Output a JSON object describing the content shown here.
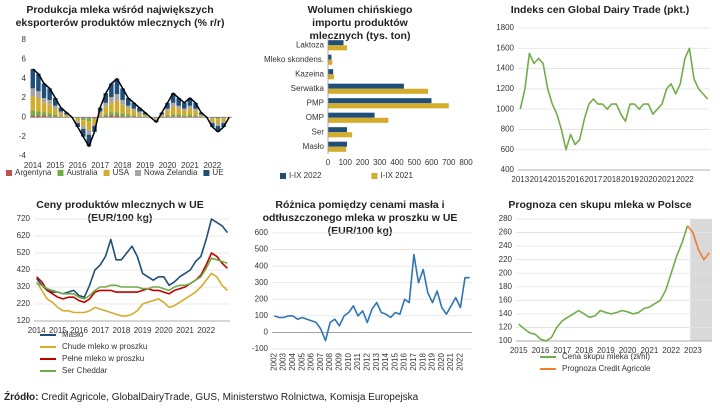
{
  "chart_data": [
    {
      "type": "bar",
      "stacked": true,
      "title": "Produkcja mleka wśród największych eksporterów produktów mlecznych (% r/r)",
      "categories": [
        "2014",
        null,
        null,
        null,
        "2015",
        null,
        null,
        null,
        "2016",
        null,
        null,
        null,
        "2017",
        null,
        null,
        null,
        "2018",
        null,
        null,
        null,
        "2019",
        null,
        null,
        null,
        "2020",
        null,
        null,
        null,
        "2021",
        null,
        null,
        null,
        "2022",
        null,
        null,
        null
      ],
      "series": [
        {
          "name": "Argentyna",
          "color": "#c0504d",
          "values": [
            0.2,
            0.2,
            0.2,
            0.1,
            0.1,
            0,
            0,
            0,
            0,
            -0.1,
            -0.1,
            -0.1,
            0,
            0.1,
            0.2,
            0.2,
            0.1,
            0.1,
            0.1,
            0,
            0,
            0,
            0,
            0,
            0.1,
            0.1,
            0.1,
            0.1,
            0.1,
            0.1,
            0,
            0,
            0,
            -0.1,
            0,
            0
          ]
        },
        {
          "name": "Australia",
          "color": "#70ad47",
          "values": [
            0.5,
            0.4,
            0.3,
            0.3,
            0.2,
            0.1,
            0,
            0,
            -0.1,
            -0.2,
            -0.3,
            -0.1,
            0.1,
            0.2,
            0.3,
            0.3,
            0.3,
            0.2,
            0.1,
            0.1,
            0,
            0,
            -0.1,
            0,
            0.1,
            0.2,
            0.2,
            0.1,
            0.2,
            0.1,
            0,
            0,
            -0.1,
            -0.1,
            -0.1,
            0
          ]
        },
        {
          "name": "USA",
          "color": "#d4ac2b",
          "values": [
            1.5,
            1.4,
            1,
            0.9,
            0.6,
            0.3,
            0.2,
            0,
            -0.3,
            -0.6,
            -0.9,
            -0.5,
            0.3,
            0.8,
            1,
            1.2,
            0.9,
            0.6,
            0.5,
            0.3,
            0.2,
            0,
            -0.1,
            0.2,
            0.5,
            0.8,
            0.6,
            0.5,
            0.6,
            0.5,
            0.2,
            0,
            -0.3,
            -0.5,
            -0.3,
            0
          ]
        },
        {
          "name": "Nowa Zelandia",
          "color": "#a5a5a5",
          "values": [
            0.8,
            0.7,
            0.5,
            0.5,
            0.3,
            0.2,
            0.1,
            0,
            -0.2,
            -0.3,
            -0.5,
            -0.2,
            0.2,
            0.4,
            0.6,
            0.7,
            0.5,
            0.3,
            0.2,
            0.2,
            0.1,
            0,
            -0.1,
            0.1,
            0.2,
            0.4,
            0.3,
            0.2,
            0.3,
            0.2,
            0.1,
            0,
            -0.2,
            -0.2,
            -0.2,
            0
          ]
        },
        {
          "name": "UE",
          "color": "#1f4e79",
          "values": [
            2,
            1.8,
            1.5,
            1.2,
            0.8,
            0.4,
            0.2,
            0,
            -0.4,
            -0.8,
            -1.2,
            -0.6,
            0.4,
            1,
            1.4,
            1.6,
            1.2,
            0.8,
            0.6,
            0.4,
            0.2,
            0,
            -0.2,
            0.2,
            0.6,
            1,
            0.8,
            0.6,
            0.8,
            0.6,
            0.2,
            0,
            -0.4,
            -0.6,
            -0.4,
            0
          ]
        }
      ],
      "line": {
        "color": "#000000",
        "values": [
          5,
          4.5,
          3.5,
          3,
          2,
          1,
          0.5,
          0,
          -1,
          -2,
          -3,
          -1.5,
          1,
          2.5,
          3.5,
          4,
          3,
          2,
          1.5,
          1,
          0.5,
          0,
          -0.5,
          0.5,
          1.5,
          2.5,
          2,
          1.5,
          2,
          1.5,
          0.5,
          0,
          -1,
          -1.5,
          -1,
          0
        ]
      },
      "ylim": [
        -4,
        8
      ],
      "yticks": [
        -4,
        -2,
        0,
        2,
        4,
        6,
        8
      ],
      "grid": false,
      "legend": "bottom"
    },
    {
      "type": "barh",
      "title": "Wolumen chińskiego importu produktów mlecznych (tys. ton)",
      "categories": [
        "Laktoza",
        "Mleko skondens.",
        "Kazeina",
        "Serwatka",
        "PMP",
        "OMP",
        "Ser",
        "Masło"
      ],
      "series": [
        {
          "name": "I-IX 2022",
          "color": "#1f4e79",
          "values": [
            90,
            20,
            30,
            440,
            600,
            270,
            110,
            110
          ]
        },
        {
          "name": "I-IX 2021",
          "color": "#d4ac2b",
          "values": [
            110,
            25,
            35,
            580,
            700,
            350,
            140,
            105
          ]
        }
      ],
      "xlim": [
        0,
        800
      ],
      "xticks": [
        0,
        100,
        200,
        300,
        400,
        500,
        600,
        700,
        800
      ],
      "grid": false,
      "legend": "bottom"
    },
    {
      "type": "line",
      "title": "Indeks cen Global Dairy Trade (pkt.)",
      "categories": [
        "2013",
        null,
        null,
        null,
        "2014",
        null,
        null,
        null,
        "2015",
        null,
        null,
        null,
        "2016",
        null,
        null,
        null,
        "2017",
        null,
        null,
        null,
        "2018",
        null,
        null,
        null,
        "2019",
        null,
        null,
        null,
        "2020",
        null,
        null,
        null,
        "2021",
        null,
        null,
        null,
        "2022",
        null,
        null,
        null,
        null,
        null
      ],
      "series": [
        {
          "color": "#70ad47",
          "values": [
            1000,
            1200,
            1550,
            1450,
            1500,
            1450,
            1200,
            1050,
            950,
            800,
            600,
            750,
            650,
            700,
            900,
            1050,
            1100,
            1050,
            1050,
            1000,
            1050,
            1050,
            950,
            880,
            1050,
            1050,
            1000,
            1050,
            1050,
            950,
            1000,
            1050,
            1200,
            1250,
            1150,
            1250,
            1500,
            1600,
            1300,
            1200,
            1150,
            1100
          ]
        }
      ],
      "ylim": [
        400,
        1800
      ],
      "yticks": [
        400,
        600,
        800,
        1000,
        1200,
        1400,
        1600,
        1800
      ],
      "grid": true
    },
    {
      "type": "line",
      "title": "Ceny produktów mlecznych w UE (EUR/100 kg)",
      "categories": [
        "2014",
        null,
        null,
        null,
        "2015",
        null,
        null,
        null,
        "2016",
        null,
        null,
        null,
        "2017",
        null,
        null,
        null,
        "2018",
        null,
        null,
        null,
        "2019",
        null,
        null,
        null,
        "2020",
        null,
        null,
        null,
        "2021",
        null,
        null,
        null,
        "2022",
        null,
        null,
        null,
        null
      ],
      "series": [
        {
          "name": "Masło",
          "color": "#1f4e79",
          "values": [
            370,
            330,
            300,
            290,
            290,
            280,
            290,
            300,
            270,
            260,
            330,
            420,
            450,
            500,
            600,
            480,
            480,
            520,
            560,
            500,
            400,
            380,
            360,
            380,
            380,
            330,
            350,
            380,
            400,
            420,
            470,
            500,
            600,
            720,
            700,
            680,
            640
          ]
        },
        {
          "name": "Chude mleko w proszku",
          "color": "#d4ac2b",
          "values": [
            350,
            300,
            250,
            230,
            200,
            180,
            180,
            170,
            170,
            170,
            180,
            200,
            190,
            180,
            170,
            160,
            150,
            150,
            160,
            180,
            220,
            230,
            240,
            250,
            230,
            200,
            210,
            230,
            250,
            270,
            290,
            320,
            360,
            400,
            380,
            330,
            300
          ]
        },
        {
          "name": "Pełne mleko w proszku",
          "color": "#c00000",
          "values": [
            380,
            350,
            300,
            280,
            260,
            250,
            260,
            260,
            240,
            230,
            250,
            290,
            300,
            300,
            300,
            290,
            290,
            290,
            290,
            290,
            300,
            310,
            300,
            300,
            290,
            280,
            300,
            310,
            320,
            340,
            360,
            390,
            450,
            520,
            500,
            460,
            430
          ]
        },
        {
          "name": "Ser Cheddar",
          "color": "#70ad47",
          "values": [
            340,
            330,
            310,
            300,
            290,
            280,
            280,
            280,
            260,
            250,
            270,
            300,
            320,
            320,
            330,
            330,
            320,
            320,
            320,
            320,
            310,
            310,
            320,
            320,
            310,
            300,
            320,
            330,
            330,
            340,
            360,
            380,
            430,
            490,
            480,
            470,
            460
          ]
        }
      ],
      "ylim": [
        120,
        720
      ],
      "yticks": [
        120,
        220,
        320,
        420,
        520,
        620,
        720
      ],
      "grid": true,
      "legend": "bottom"
    },
    {
      "type": "line",
      "title": "Różnica pomiędzy cenami masła i odtłuszczonego mleka w proszku w UE (EUR/100 kg)",
      "categories": [
        "2002",
        null,
        "2003",
        null,
        "2004",
        null,
        "2005",
        null,
        "2006",
        null,
        "2007",
        null,
        "2008",
        null,
        "2009",
        null,
        "2010",
        null,
        "2011",
        null,
        "2012",
        null,
        "2013",
        null,
        "2014",
        null,
        "2015",
        null,
        "2016",
        null,
        "2017",
        null,
        "2018",
        null,
        "2019",
        null,
        "2020",
        null,
        "2021",
        null,
        "2022",
        null,
        null
      ],
      "series": [
        {
          "color": "#2e75b6",
          "values": [
            100,
            90,
            90,
            100,
            100,
            80,
            90,
            80,
            70,
            60,
            20,
            -50,
            60,
            80,
            40,
            100,
            120,
            160,
            100,
            130,
            60,
            140,
            180,
            120,
            110,
            90,
            120,
            110,
            200,
            180,
            470,
            300,
            380,
            240,
            180,
            250,
            150,
            110,
            160,
            210,
            150,
            330,
            330
          ]
        }
      ],
      "ylim": [
        -100,
        600
      ],
      "yticks": [
        -100,
        0,
        100,
        200,
        300,
        400,
        500,
        600
      ],
      "grid": true
    },
    {
      "type": "line",
      "title": "Prognoza cen skupu mleka w Polsce",
      "categories": [
        "2015",
        null,
        null,
        null,
        "2016",
        null,
        null,
        null,
        "2017",
        null,
        null,
        null,
        "2018",
        null,
        null,
        null,
        "2019",
        null,
        null,
        null,
        "2020",
        null,
        null,
        null,
        "2021",
        null,
        null,
        null,
        "2022",
        null,
        null,
        null,
        "2023",
        null,
        null,
        null
      ],
      "series": [
        {
          "name": "Cena skupu mleka (zł/hl)",
          "color": "#70ad47",
          "values": [
            125,
            118,
            112,
            110,
            103,
            100,
            105,
            120,
            130,
            135,
            140,
            145,
            140,
            135,
            137,
            145,
            142,
            140,
            142,
            145,
            143,
            140,
            142,
            148,
            150,
            155,
            160,
            175,
            200,
            225,
            245,
            270,
            null,
            null,
            null,
            null
          ]
        },
        {
          "name": "Prognoza Credit Agricole",
          "color": "#ed7d31",
          "values": [
            null,
            null,
            null,
            null,
            null,
            null,
            null,
            null,
            null,
            null,
            null,
            null,
            null,
            null,
            null,
            null,
            null,
            null,
            null,
            null,
            null,
            null,
            null,
            null,
            null,
            null,
            null,
            null,
            null,
            null,
            null,
            270,
            260,
            235,
            220,
            230
          ]
        }
      ],
      "forecast_shade": "#d9d9d9",
      "ylim": [
        100,
        280
      ],
      "yticks": [
        100,
        120,
        140,
        160,
        180,
        200,
        220,
        240,
        260,
        280
      ],
      "grid": true,
      "legend": "bottom"
    }
  ],
  "footer": {
    "label": "Źródło:",
    "text": "Credit Agricole, GlobalDairyTrade, GUS, Ministerstwo Rolnictwa, Komisja Europejska"
  }
}
